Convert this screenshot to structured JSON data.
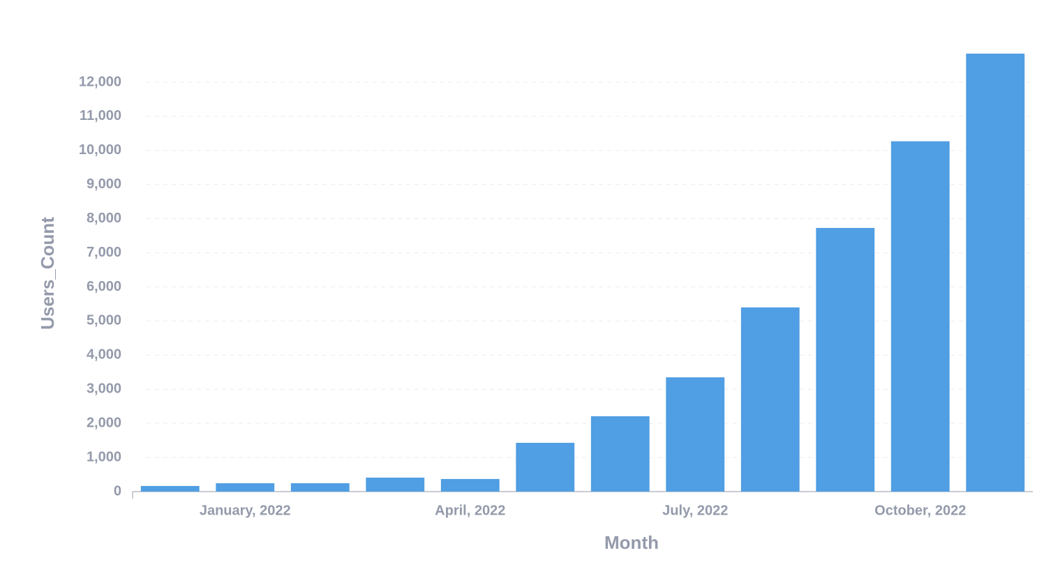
{
  "chart_data": {
    "type": "bar",
    "x_label": "Month",
    "y_label": "Users_Count",
    "categories": [
      null,
      "January, 2022",
      null,
      null,
      "April, 2022",
      null,
      null,
      "July, 2022",
      null,
      null,
      "October, 2022",
      null
    ],
    "values": [
      165,
      245,
      245,
      410,
      370,
      1430,
      2210,
      3350,
      5400,
      7730,
      10270,
      12840
    ],
    "color": "#509ee3",
    "ylim": [
      0,
      12850
    ],
    "yticks": [
      0,
      {
        "value": 1000,
        "label": "1,000"
      },
      {
        "value": 2000,
        "label": "2,000"
      },
      {
        "value": 3000,
        "label": "3,000"
      },
      {
        "value": 4000,
        "label": "4,000"
      },
      {
        "value": 5000,
        "label": "5,000"
      },
      {
        "value": 6000,
        "label": "6,000"
      },
      {
        "value": 7000,
        "label": "7,000"
      },
      {
        "value": 8000,
        "label": "8,000"
      },
      {
        "value": 9000,
        "label": "9,000"
      },
      {
        "value": 10000,
        "label": "10,000"
      },
      {
        "value": 11000,
        "label": "11,000"
      },
      {
        "value": 12000,
        "label": "12,000"
      }
    ],
    "grid": true
  }
}
